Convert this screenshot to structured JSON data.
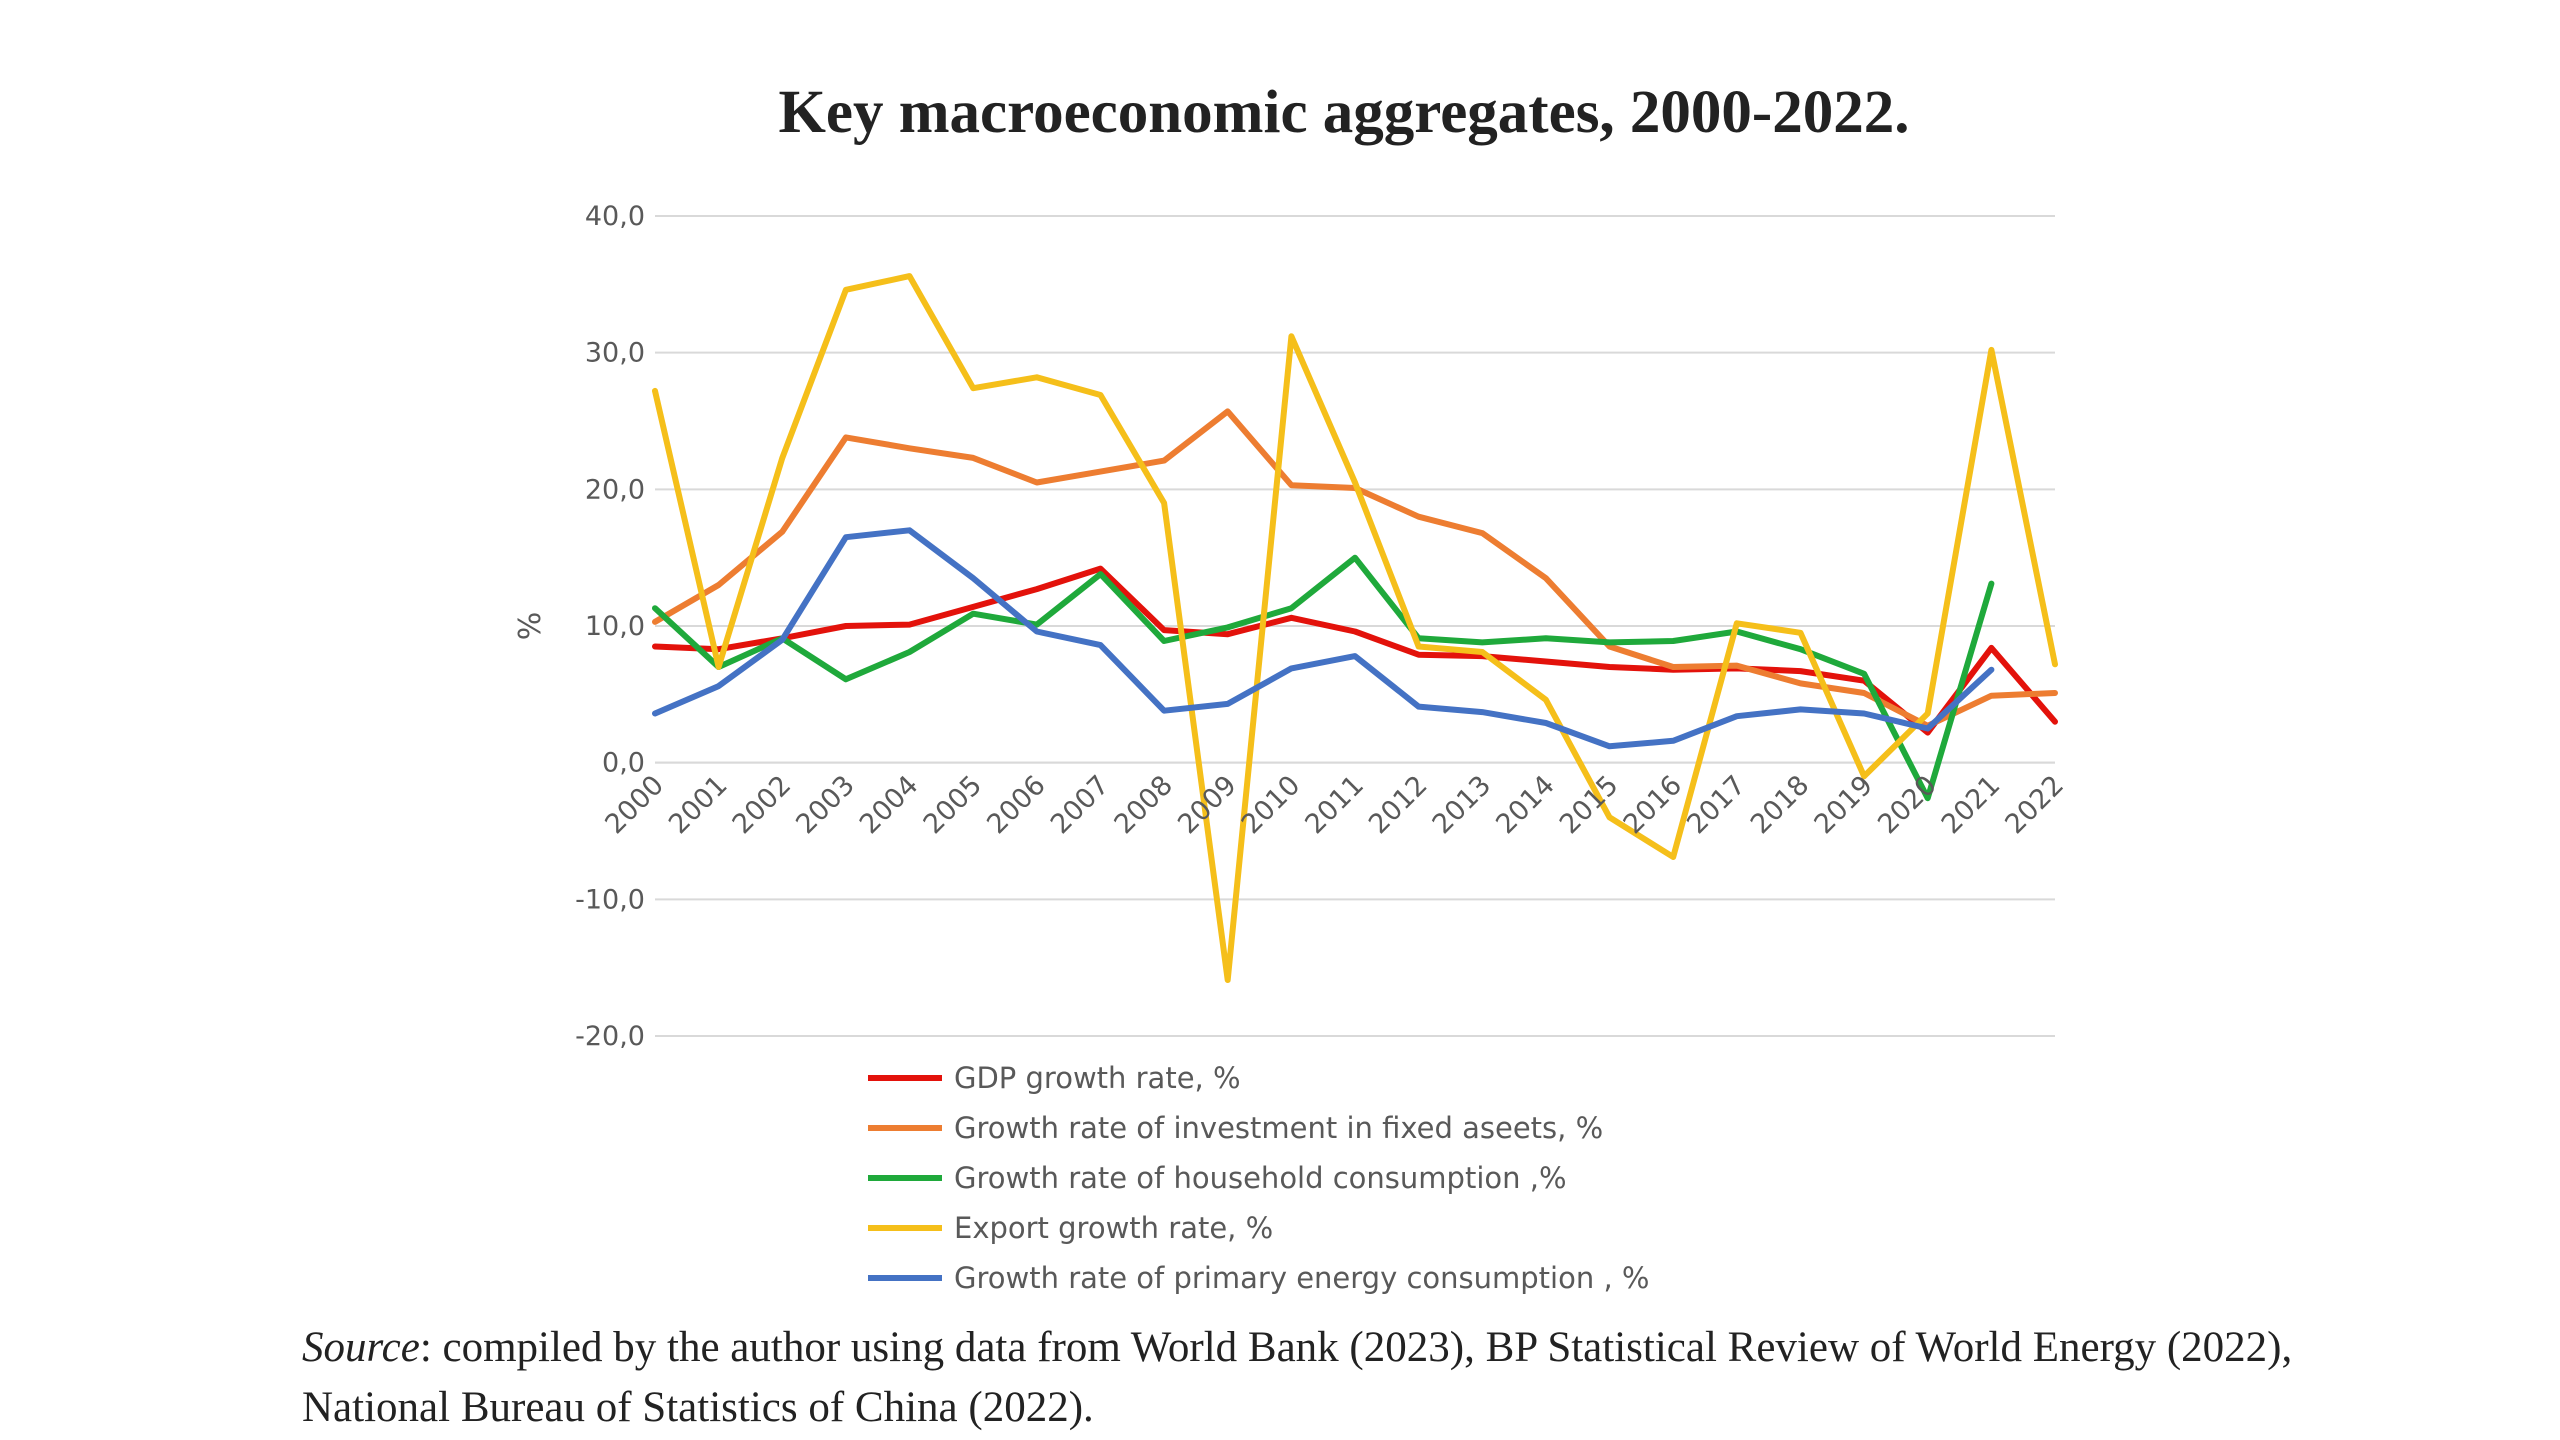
{
  "chart_data": {
    "type": "line",
    "title": "Key macroeconomic aggregates, 2000-2022.",
    "ylabel": "%",
    "xlabel": "",
    "ylim": [
      -20,
      40
    ],
    "yticks": [
      40,
      30,
      20,
      10,
      0,
      -10,
      -20
    ],
    "ytick_labels": [
      "40,0",
      "30,0",
      "20,0",
      "10,0",
      "0,0",
      "-10,0",
      "-20,0"
    ],
    "grid": true,
    "legend_position": "bottom",
    "x": [
      "2000",
      "2001",
      "2002",
      "2003",
      "2004",
      "2005",
      "2006",
      "2007",
      "2008",
      "2009",
      "2010",
      "2011",
      "2012",
      "2013",
      "2014",
      "2015",
      "2016",
      "2017",
      "2018",
      "2019",
      "2020",
      "2021",
      "2022"
    ],
    "series": [
      {
        "name": "GDP growth rate, %",
        "color": "#e3120b",
        "values": [
          8.5,
          8.3,
          9.1,
          10.0,
          10.1,
          11.4,
          12.7,
          14.2,
          9.7,
          9.4,
          10.6,
          9.6,
          7.9,
          7.8,
          7.4,
          7.0,
          6.8,
          6.9,
          6.7,
          6.0,
          2.2,
          8.4,
          3.0
        ]
      },
      {
        "name": "Growth rate of investment in fixed aseets, %",
        "color": "#ed7d31",
        "values": [
          10.3,
          13.0,
          16.9,
          23.8,
          23.0,
          22.3,
          20.5,
          21.3,
          22.1,
          25.7,
          20.3,
          20.1,
          18.0,
          16.8,
          13.5,
          8.5,
          7.0,
          7.1,
          5.8,
          5.1,
          2.7,
          4.9,
          5.1
        ]
      },
      {
        "name": "Growth rate of household consumption ,%",
        "color": "#1fa93b",
        "values": [
          11.3,
          7.0,
          9.1,
          6.1,
          8.1,
          10.9,
          10.1,
          13.8,
          8.9,
          9.9,
          11.3,
          15.0,
          9.1,
          8.8,
          9.1,
          8.8,
          8.9,
          9.6,
          8.3,
          6.5,
          -2.6,
          13.1,
          null
        ]
      },
      {
        "name": "Export growth rate, %",
        "color": "#f5bf1a",
        "values": [
          27.2,
          7.0,
          22.3,
          34.6,
          35.6,
          27.4,
          28.2,
          26.9,
          19.0,
          -15.9,
          31.2,
          20.5,
          8.5,
          8.1,
          4.6,
          -4.0,
          -6.9,
          10.2,
          9.5,
          -1.0,
          3.6,
          30.2,
          7.2
        ]
      },
      {
        "name": "Growth rate of primary energy consumption , %",
        "color": "#4472c4",
        "values": [
          3.6,
          5.6,
          9.0,
          16.5,
          17.0,
          13.5,
          9.6,
          8.6,
          3.8,
          4.3,
          6.9,
          7.8,
          4.1,
          3.7,
          2.9,
          1.2,
          1.6,
          3.4,
          3.9,
          3.6,
          2.5,
          6.8,
          null
        ]
      }
    ]
  },
  "source": {
    "label": "Source",
    "text": ": compiled by the author using data from World Bank (2023), BP Statistical Review of World Energy (2022), National Bureau of Statistics of China (2022)."
  }
}
